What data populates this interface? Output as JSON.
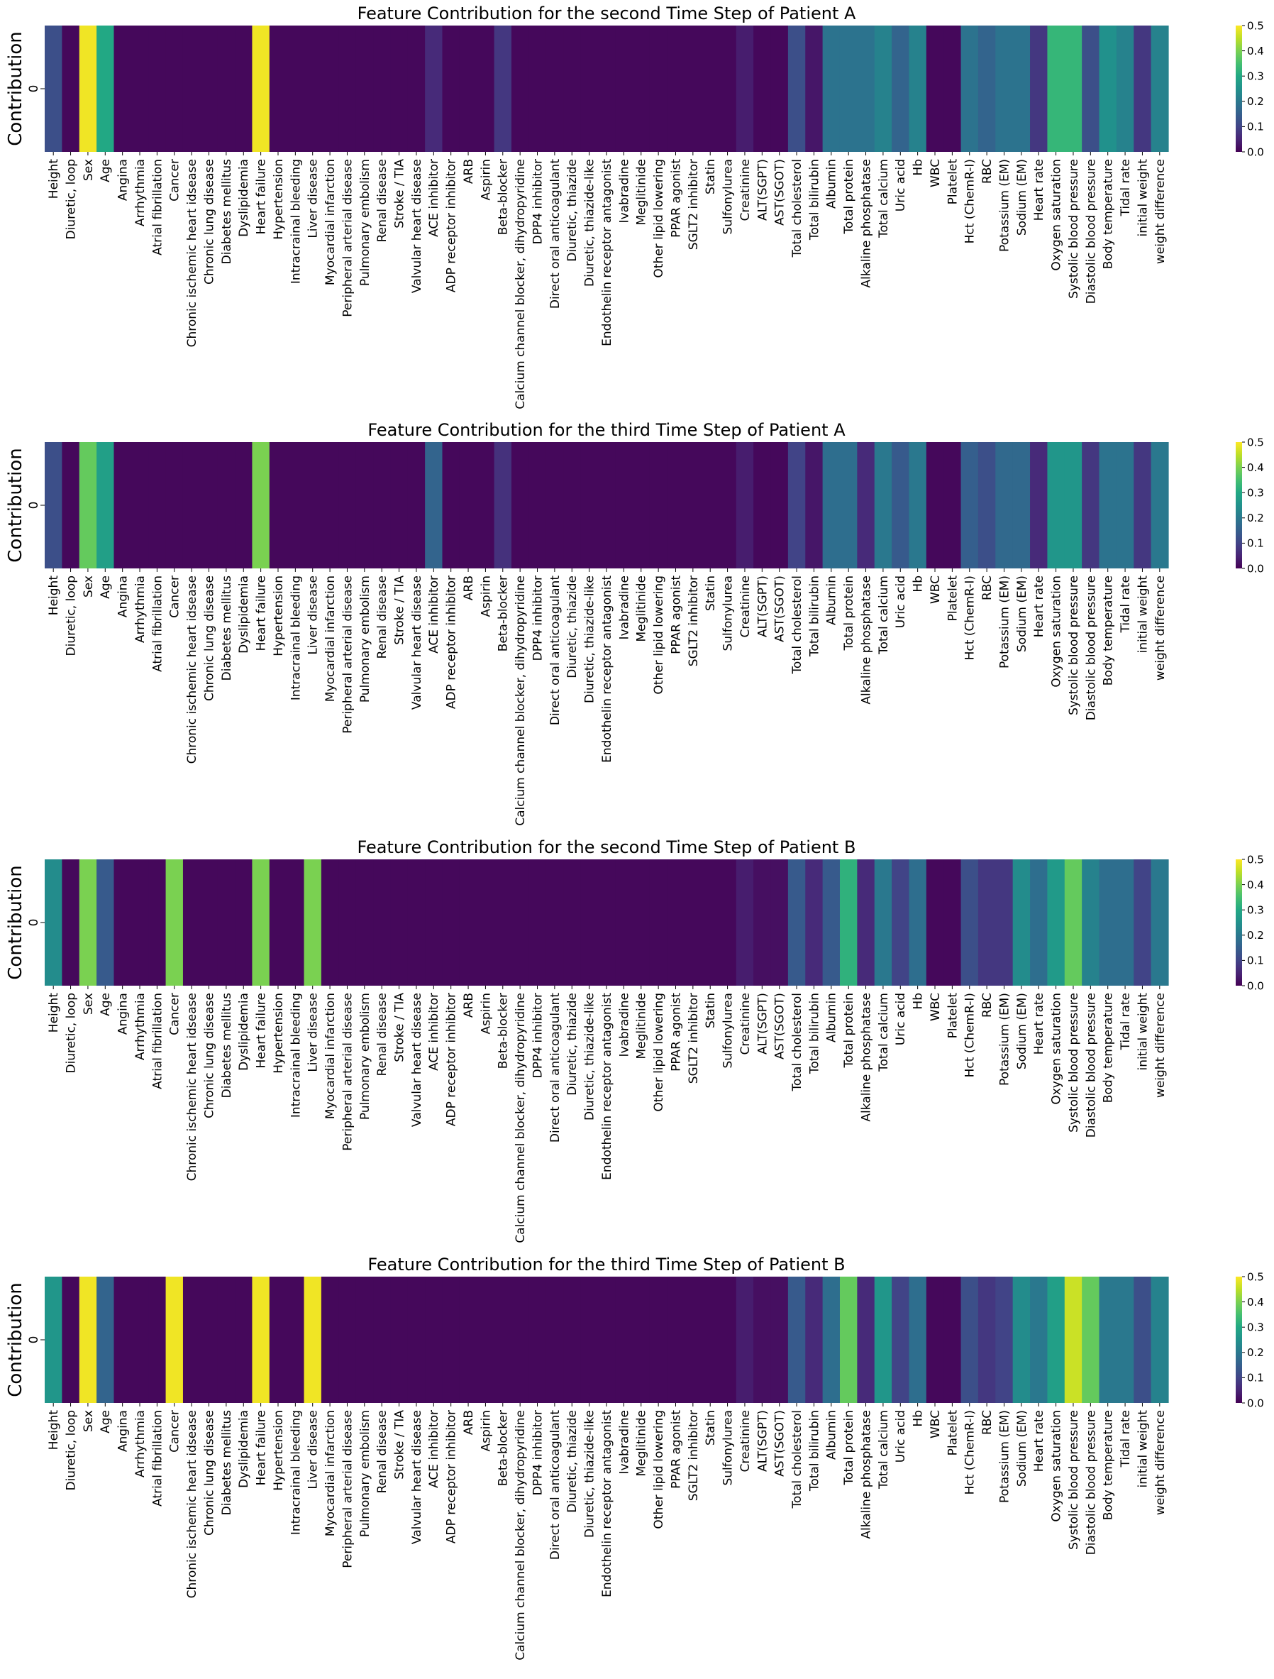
{
  "chart_data": {
    "type": "heatmap",
    "features": [
      "Height",
      "Diuretic, loop",
      "Sex",
      "Age",
      "Angina",
      "Arrhythmia",
      "Atrial fibrillation",
      "Cancer",
      "Chronic ischemic heart idsease",
      "Chronic lung disease",
      "Diabetes mellitus",
      "Dyslipidemia",
      "Heart failure",
      "Hypertension",
      "Intracrainal bleeding",
      "Liver disease",
      "Myocardial infarction",
      "Peripheral arterial disease",
      "Pulmonary embolism",
      "Renal disease",
      "Stroke / TIA",
      "Valvular heart disease",
      "ACE inhibitor",
      "ADP receptor inhibitor",
      "ARB",
      "Aspirin",
      "Beta-blocker",
      "Calcium channel blocker, dihydropyridine",
      "DPP4 inhibitor",
      "Direct oral anticoagulant",
      "Diuretic, thiazide",
      "Diuretic, thiazide-like",
      "Endothelin receptor antagonist",
      "Ivabradine",
      "Meglitinide",
      "Other lipid lowering",
      "PPAR agonist",
      "SGLT2 inhibitor",
      "Statin",
      "Sulfonylurea",
      "Creatinine",
      "ALT(SGPT)",
      "AST(SGOT)",
      "Total cholesterol",
      "Total bilirubin",
      "Albumin",
      "Total protein",
      "Alkaline phosphatase",
      "Total calcium",
      "Uric acid",
      "Hb",
      "WBC",
      "Platelet",
      "Hct (ChemR-I)",
      "RBC",
      "Potassium (EM)",
      "Sodium (EM)",
      "Heart rate",
      "Oxygen saturation",
      "Systolic blood pressure",
      "Diastolic blood pressure",
      "Body temperature",
      "Tidal rate",
      "initial weight",
      "weight difference"
    ],
    "y_row_label": "0",
    "ylabel": "Contribution",
    "colormap": "viridis",
    "vmin": 0.0,
    "vmax": 0.5,
    "colorbar_ticks": [
      "0.0",
      "0.1",
      "0.2",
      "0.3",
      "0.4",
      "0.5"
    ],
    "panels": [
      {
        "title": "Feature Contribution for the second Time Step of Patient A",
        "values": [
          0.12,
          0.01,
          0.49,
          0.3,
          0.01,
          0.01,
          0.01,
          0.01,
          0.01,
          0.01,
          0.01,
          0.01,
          0.49,
          0.01,
          0.01,
          0.01,
          0.01,
          0.01,
          0.01,
          0.01,
          0.01,
          0.01,
          0.06,
          0.01,
          0.01,
          0.01,
          0.08,
          0.01,
          0.01,
          0.01,
          0.01,
          0.01,
          0.01,
          0.01,
          0.01,
          0.01,
          0.01,
          0.01,
          0.01,
          0.01,
          0.04,
          0.01,
          0.01,
          0.12,
          0.03,
          0.19,
          0.19,
          0.19,
          0.22,
          0.16,
          0.22,
          0.01,
          0.01,
          0.19,
          0.16,
          0.19,
          0.19,
          0.08,
          0.33,
          0.33,
          0.12,
          0.25,
          0.22,
          0.08,
          0.22
        ]
      },
      {
        "title": "Feature Contribution for the third Time Step of Patient A",
        "values": [
          0.12,
          0.01,
          0.38,
          0.28,
          0.01,
          0.01,
          0.01,
          0.01,
          0.01,
          0.01,
          0.01,
          0.01,
          0.4,
          0.01,
          0.01,
          0.01,
          0.01,
          0.01,
          0.01,
          0.01,
          0.01,
          0.01,
          0.16,
          0.01,
          0.01,
          0.01,
          0.07,
          0.01,
          0.01,
          0.01,
          0.01,
          0.01,
          0.01,
          0.01,
          0.01,
          0.01,
          0.01,
          0.01,
          0.01,
          0.01,
          0.04,
          0.01,
          0.01,
          0.1,
          0.03,
          0.18,
          0.18,
          0.06,
          0.2,
          0.14,
          0.2,
          0.01,
          0.01,
          0.15,
          0.12,
          0.17,
          0.17,
          0.06,
          0.26,
          0.26,
          0.08,
          0.19,
          0.19,
          0.08,
          0.2
        ]
      },
      {
        "title": "Feature Contribution for the second Time Step of Patient B",
        "values": [
          0.24,
          0.01,
          0.4,
          0.14,
          0.01,
          0.01,
          0.01,
          0.4,
          0.01,
          0.01,
          0.01,
          0.01,
          0.4,
          0.01,
          0.01,
          0.4,
          0.01,
          0.01,
          0.01,
          0.01,
          0.01,
          0.01,
          0.01,
          0.01,
          0.01,
          0.01,
          0.01,
          0.01,
          0.01,
          0.01,
          0.01,
          0.01,
          0.01,
          0.01,
          0.01,
          0.01,
          0.01,
          0.01,
          0.01,
          0.01,
          0.04,
          0.02,
          0.02,
          0.14,
          0.06,
          0.14,
          0.32,
          0.06,
          0.2,
          0.1,
          0.18,
          0.01,
          0.01,
          0.12,
          0.08,
          0.08,
          0.24,
          0.18,
          0.27,
          0.38,
          0.22,
          0.18,
          0.18,
          0.1,
          0.2
        ]
      },
      {
        "title": "Feature Contribution for the third Time Step of Patient B",
        "values": [
          0.26,
          0.01,
          0.49,
          0.16,
          0.01,
          0.01,
          0.01,
          0.49,
          0.01,
          0.01,
          0.01,
          0.01,
          0.49,
          0.01,
          0.01,
          0.49,
          0.01,
          0.01,
          0.01,
          0.01,
          0.01,
          0.01,
          0.01,
          0.01,
          0.01,
          0.01,
          0.01,
          0.01,
          0.01,
          0.01,
          0.01,
          0.01,
          0.01,
          0.01,
          0.01,
          0.01,
          0.01,
          0.01,
          0.01,
          0.01,
          0.04,
          0.02,
          0.02,
          0.14,
          0.06,
          0.18,
          0.38,
          0.06,
          0.26,
          0.1,
          0.18,
          0.01,
          0.01,
          0.12,
          0.08,
          0.1,
          0.24,
          0.2,
          0.28,
          0.46,
          0.38,
          0.2,
          0.2,
          0.12,
          0.22
        ]
      }
    ]
  }
}
